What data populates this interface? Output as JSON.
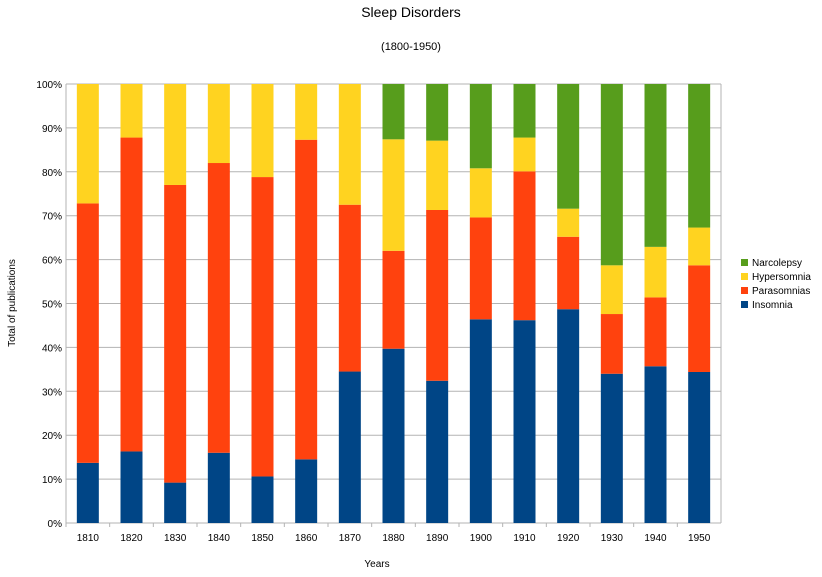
{
  "chart_data": {
    "type": "bar",
    "stacked": true,
    "percent": true,
    "title": "Sleep Disorders",
    "subtitle": "(1800-1950)",
    "xlabel": "Years",
    "ylabel": "Total of publications",
    "ylim": [
      0,
      100
    ],
    "yticks": [
      "0%",
      "10%",
      "20%",
      "30%",
      "40%",
      "50%",
      "60%",
      "70%",
      "80%",
      "90%",
      "100%"
    ],
    "grid": true,
    "legend_position": "right",
    "categories": [
      "1810",
      "1820",
      "1830",
      "1840",
      "1850",
      "1860",
      "1870",
      "1880",
      "1890",
      "1900",
      "1910",
      "1920",
      "1930",
      "1940",
      "1950"
    ],
    "series": [
      {
        "name": "Insomnia",
        "color": "#004586",
        "values": [
          13.7,
          16.3,
          9.2,
          16.0,
          10.6,
          14.5,
          34.5,
          39.7,
          32.4,
          46.4,
          46.2,
          48.7,
          34.0,
          35.7,
          34.4
        ]
      },
      {
        "name": "Parasomnias",
        "color": "#ff420e",
        "values": [
          59.1,
          71.5,
          67.8,
          66.0,
          68.2,
          72.8,
          38.0,
          22.3,
          38.9,
          23.2,
          33.9,
          16.5,
          13.6,
          15.7,
          24.3
        ]
      },
      {
        "name": "Hypersomnia",
        "color": "#ffd320",
        "values": [
          27.2,
          12.2,
          23.0,
          18.0,
          21.2,
          12.7,
          27.5,
          25.4,
          15.8,
          11.2,
          7.7,
          6.4,
          11.1,
          11.5,
          8.6
        ]
      },
      {
        "name": "Narcolepsy",
        "color": "#579d1c",
        "values": [
          0,
          0,
          0,
          0,
          0,
          0,
          0,
          12.6,
          12.9,
          19.2,
          12.2,
          28.4,
          41.3,
          37.1,
          32.7
        ]
      }
    ]
  }
}
